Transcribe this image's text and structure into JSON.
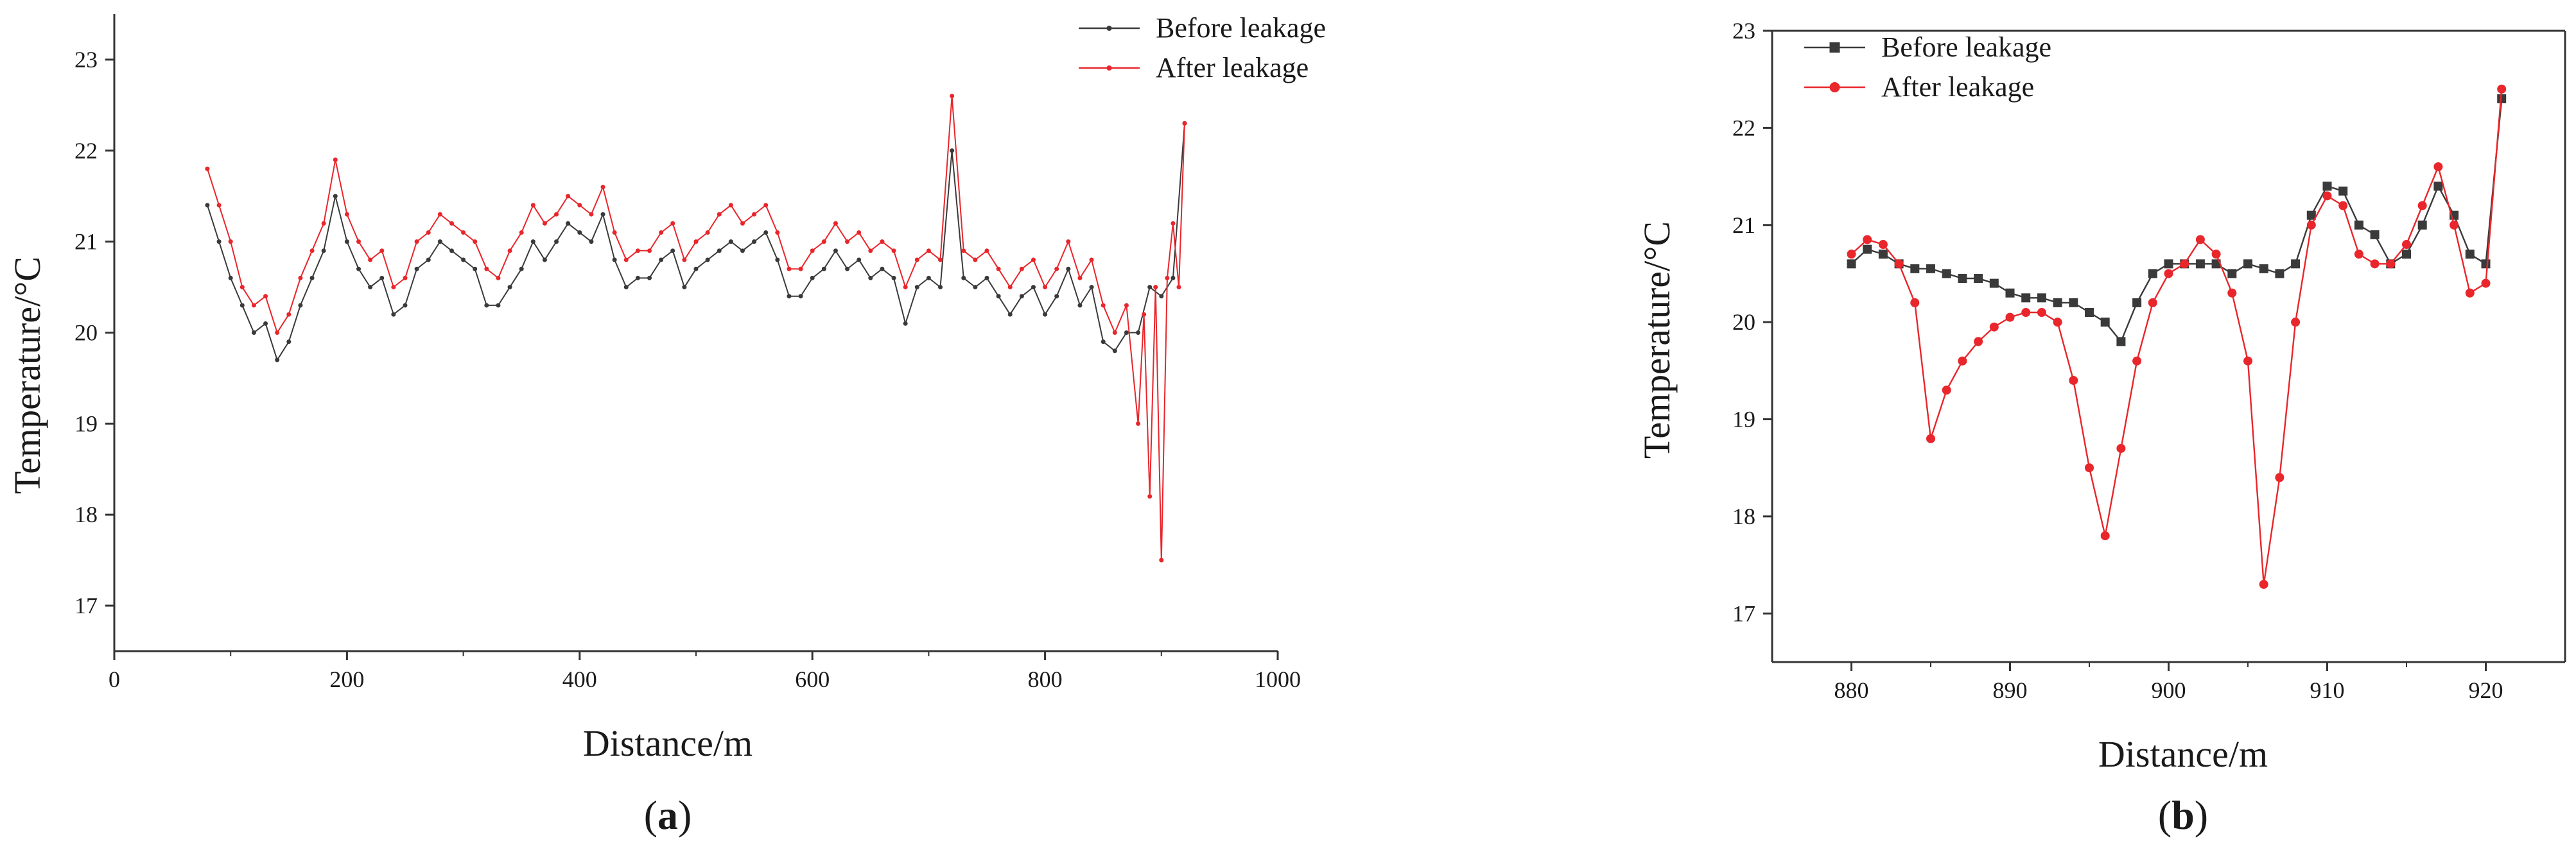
{
  "panel_labels": {
    "a": {
      "open": "(",
      "letter": "a",
      "close": ")"
    },
    "b": {
      "open": "(",
      "letter": "b",
      "close": ")"
    }
  },
  "colors": {
    "before": "#3a3a3a",
    "after": "#e8262b",
    "axis": "#333333"
  },
  "chart_data": [
    {
      "type": "line",
      "panel": "a",
      "xlabel": "Distance/m",
      "ylabel": "Temperature/°C",
      "xlim": [
        0,
        1000
      ],
      "ylim": [
        16.5,
        23.5
      ],
      "xticks": [
        0,
        200,
        400,
        600,
        800,
        1000
      ],
      "yticks": [
        17,
        18,
        19,
        20,
        21,
        22,
        23
      ],
      "grid": false,
      "legend_position": "top-right",
      "marker_style": "small dots",
      "series": [
        {
          "name": "Before leakage",
          "color": "#3a3a3a",
          "x": [
            80,
            90,
            100,
            110,
            120,
            130,
            140,
            150,
            160,
            170,
            180,
            190,
            200,
            210,
            220,
            230,
            240,
            250,
            260,
            270,
            280,
            290,
            300,
            310,
            320,
            330,
            340,
            350,
            360,
            370,
            380,
            390,
            400,
            410,
            420,
            430,
            440,
            450,
            460,
            470,
            480,
            490,
            500,
            510,
            520,
            530,
            540,
            550,
            560,
            570,
            580,
            590,
            600,
            610,
            620,
            630,
            640,
            650,
            660,
            670,
            680,
            690,
            700,
            710,
            720,
            730,
            740,
            750,
            760,
            770,
            780,
            790,
            800,
            810,
            820,
            830,
            840,
            850,
            860,
            870,
            880,
            890,
            900,
            910,
            920
          ],
          "y": [
            21.4,
            21.0,
            20.6,
            20.3,
            20.0,
            20.1,
            19.7,
            19.9,
            20.3,
            20.6,
            20.9,
            21.5,
            21.0,
            20.7,
            20.5,
            20.6,
            20.2,
            20.3,
            20.7,
            20.8,
            21.0,
            20.9,
            20.8,
            20.7,
            20.3,
            20.3,
            20.5,
            20.7,
            21.0,
            20.8,
            21.0,
            21.2,
            21.1,
            21.0,
            21.3,
            20.8,
            20.5,
            20.6,
            20.6,
            20.8,
            20.9,
            20.5,
            20.7,
            20.8,
            20.9,
            21.0,
            20.9,
            21.0,
            21.1,
            20.8,
            20.4,
            20.4,
            20.6,
            20.7,
            20.9,
            20.7,
            20.8,
            20.6,
            20.7,
            20.6,
            20.1,
            20.5,
            20.6,
            20.5,
            22.0,
            20.6,
            20.5,
            20.6,
            20.4,
            20.2,
            20.4,
            20.5,
            20.2,
            20.4,
            20.7,
            20.3,
            20.5,
            19.9,
            19.8,
            20.0,
            20.0,
            20.5,
            20.4,
            20.6,
            22.3
          ]
        },
        {
          "name": "After leakage",
          "color": "#e8262b",
          "x": [
            80,
            90,
            100,
            110,
            120,
            130,
            140,
            150,
            160,
            170,
            180,
            190,
            200,
            210,
            220,
            230,
            240,
            250,
            260,
            270,
            280,
            290,
            300,
            310,
            320,
            330,
            340,
            350,
            360,
            370,
            380,
            390,
            400,
            410,
            420,
            430,
            440,
            450,
            460,
            470,
            480,
            490,
            500,
            510,
            520,
            530,
            540,
            550,
            560,
            570,
            580,
            590,
            600,
            610,
            620,
            630,
            640,
            650,
            660,
            670,
            680,
            690,
            700,
            710,
            720,
            730,
            740,
            750,
            760,
            770,
            780,
            790,
            800,
            810,
            820,
            830,
            840,
            850,
            860,
            870,
            880,
            885,
            890,
            895,
            900,
            905,
            910,
            915,
            920
          ],
          "y": [
            21.8,
            21.4,
            21.0,
            20.5,
            20.3,
            20.4,
            20.0,
            20.2,
            20.6,
            20.9,
            21.2,
            21.9,
            21.3,
            21.0,
            20.8,
            20.9,
            20.5,
            20.6,
            21.0,
            21.1,
            21.3,
            21.2,
            21.1,
            21.0,
            20.7,
            20.6,
            20.9,
            21.1,
            21.4,
            21.2,
            21.3,
            21.5,
            21.4,
            21.3,
            21.6,
            21.1,
            20.8,
            20.9,
            20.9,
            21.1,
            21.2,
            20.8,
            21.0,
            21.1,
            21.3,
            21.4,
            21.2,
            21.3,
            21.4,
            21.1,
            20.7,
            20.7,
            20.9,
            21.0,
            21.2,
            21.0,
            21.1,
            20.9,
            21.0,
            20.9,
            20.5,
            20.8,
            20.9,
            20.8,
            22.6,
            20.9,
            20.8,
            20.9,
            20.7,
            20.5,
            20.7,
            20.8,
            20.5,
            20.7,
            21.0,
            20.6,
            20.8,
            20.3,
            20.0,
            20.3,
            19.0,
            20.2,
            18.2,
            20.5,
            17.5,
            20.6,
            21.2,
            20.5,
            22.3
          ]
        }
      ]
    },
    {
      "type": "line",
      "panel": "b",
      "xlabel": "Distance/m",
      "ylabel": "Temperature/°C",
      "xlim": [
        875,
        925
      ],
      "ylim": [
        16.5,
        23
      ],
      "xticks": [
        880,
        890,
        900,
        910,
        920
      ],
      "yticks": [
        17,
        18,
        19,
        20,
        21,
        22,
        23
      ],
      "grid": false,
      "legend_position": "top-left",
      "series": [
        {
          "name": "Before leakage",
          "color": "#3a3a3a",
          "marker": "square",
          "x": [
            880,
            881,
            882,
            883,
            884,
            885,
            886,
            887,
            888,
            889,
            890,
            891,
            892,
            893,
            894,
            895,
            896,
            897,
            898,
            899,
            900,
            901,
            902,
            903,
            904,
            905,
            906,
            907,
            908,
            909,
            910,
            911,
            912,
            913,
            914,
            915,
            916,
            917,
            918,
            919,
            920,
            921
          ],
          "y": [
            20.6,
            20.75,
            20.7,
            20.6,
            20.55,
            20.55,
            20.5,
            20.45,
            20.45,
            20.4,
            20.3,
            20.25,
            20.25,
            20.2,
            20.2,
            20.1,
            20.0,
            19.8,
            20.2,
            20.5,
            20.6,
            20.6,
            20.6,
            20.6,
            20.5,
            20.6,
            20.55,
            20.5,
            20.6,
            21.1,
            21.4,
            21.35,
            21.0,
            20.9,
            20.6,
            20.7,
            21.0,
            21.4,
            21.1,
            20.7,
            20.6,
            22.3
          ]
        },
        {
          "name": "After leakage",
          "color": "#e8262b",
          "marker": "circle",
          "x": [
            880,
            881,
            882,
            883,
            884,
            885,
            886,
            887,
            888,
            889,
            890,
            891,
            892,
            893,
            894,
            895,
            896,
            897,
            898,
            899,
            900,
            901,
            902,
            903,
            904,
            905,
            906,
            907,
            908,
            909,
            910,
            911,
            912,
            913,
            914,
            915,
            916,
            917,
            918,
            919,
            920,
            921
          ],
          "y": [
            20.7,
            20.85,
            20.8,
            20.6,
            20.2,
            18.8,
            19.3,
            19.6,
            19.8,
            19.95,
            20.05,
            20.1,
            20.1,
            20.0,
            19.4,
            18.5,
            17.8,
            18.7,
            19.6,
            20.2,
            20.5,
            20.6,
            20.85,
            20.7,
            20.3,
            19.6,
            17.3,
            18.4,
            20.0,
            21.0,
            21.3,
            21.2,
            20.7,
            20.6,
            20.6,
            20.8,
            21.2,
            21.6,
            21.0,
            20.3,
            20.4,
            22.4
          ]
        }
      ]
    }
  ]
}
